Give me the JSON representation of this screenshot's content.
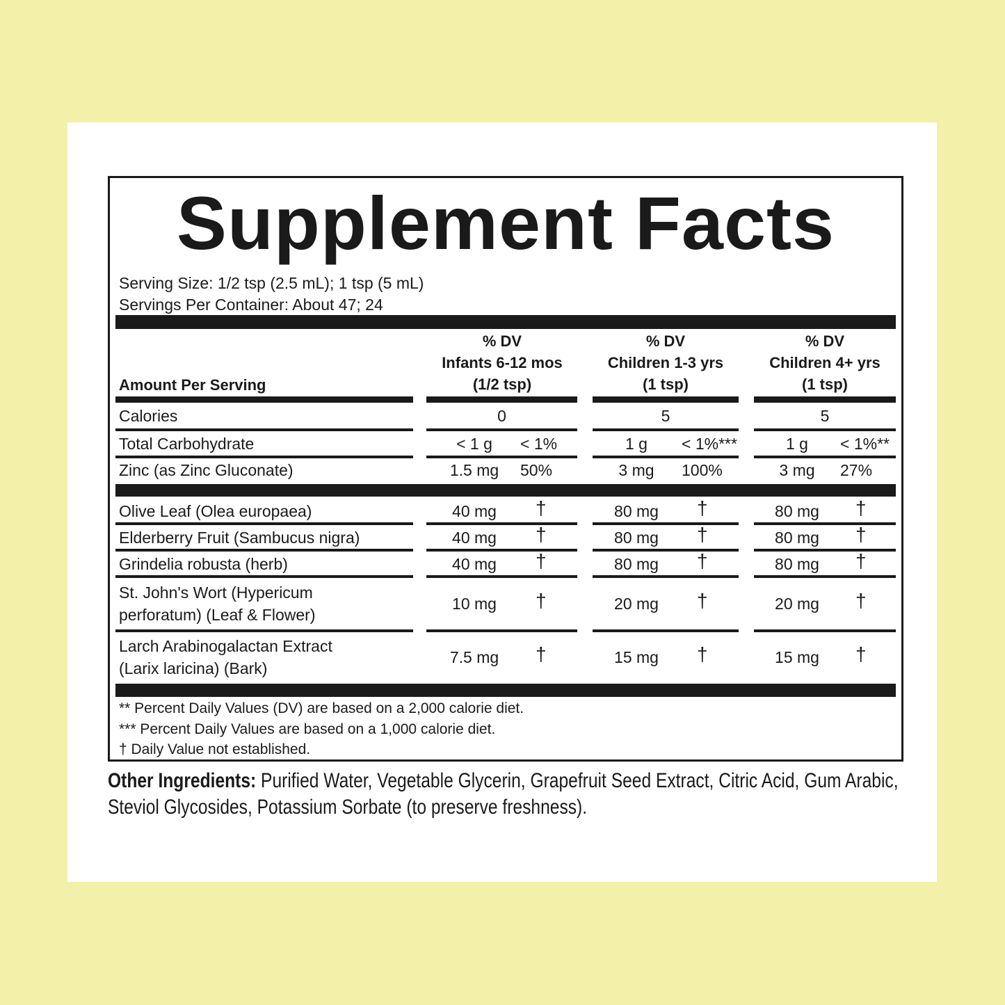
{
  "title": "Supplement Facts",
  "serving_size": "Serving Size: 1/2 tsp (2.5 mL); 1 tsp (5 mL)",
  "servings_per_container": "Servings Per Container: About 47; 24",
  "header": {
    "amount_per_serving": "Amount Per Serving",
    "columns": [
      {
        "dv": "% DV",
        "group": "Infants 6-12 mos",
        "serving": "(1/2 tsp)"
      },
      {
        "dv": "% DV",
        "group": "Children 1-3 yrs",
        "serving": "(1 tsp)"
      },
      {
        "dv": "% DV",
        "group": "Children 4+ yrs",
        "serving": "(1 tsp)"
      }
    ]
  },
  "rows": [
    {
      "name": "Calories",
      "cols": [
        {
          "amount": "0",
          "dv": ""
        },
        {
          "amount": "5",
          "dv": ""
        },
        {
          "amount": "5",
          "dv": ""
        }
      ],
      "single": true
    },
    {
      "name": "Total Carbohydrate",
      "cols": [
        {
          "amount": "< 1 g",
          "dv": "< 1%"
        },
        {
          "amount": "1 g",
          "dv": "< 1%***"
        },
        {
          "amount": "1 g",
          "dv": "< 1%**"
        }
      ]
    },
    {
      "name": "Zinc (as Zinc Gluconate)",
      "cols": [
        {
          "amount": "1.5 mg",
          "dv": "50%"
        },
        {
          "amount": "3 mg",
          "dv": "100%"
        },
        {
          "amount": "3 mg",
          "dv": "27%"
        }
      ]
    },
    {
      "name": "Olive Leaf (Olea europaea)",
      "cols": [
        {
          "amount": "40 mg",
          "dv": "†"
        },
        {
          "amount": "80 mg",
          "dv": "†"
        },
        {
          "amount": "80 mg",
          "dv": "†"
        }
      ]
    },
    {
      "name": "Elderberry Fruit (Sambucus nigra)",
      "cols": [
        {
          "amount": "40 mg",
          "dv": "†"
        },
        {
          "amount": "80 mg",
          "dv": "†"
        },
        {
          "amount": "80 mg",
          "dv": "†"
        }
      ]
    },
    {
      "name": "Grindelia robusta (herb)",
      "cols": [
        {
          "amount": "40 mg",
          "dv": "†"
        },
        {
          "amount": "80 mg",
          "dv": "†"
        },
        {
          "amount": "80 mg",
          "dv": "†"
        }
      ]
    },
    {
      "name": "St. John's Wort (Hypericum",
      "name2": "perforatum) (Leaf & Flower)",
      "cols": [
        {
          "amount": "10 mg",
          "dv": "†"
        },
        {
          "amount": "20 mg",
          "dv": "†"
        },
        {
          "amount": "20 mg",
          "dv": "†"
        }
      ]
    },
    {
      "name": "Larch Arabinogalactan Extract",
      "name2": "(Larix laricina) (Bark)",
      "cols": [
        {
          "amount": "7.5 mg",
          "dv": "†"
        },
        {
          "amount": "15 mg",
          "dv": "†"
        },
        {
          "amount": "15 mg",
          "dv": "†"
        }
      ]
    }
  ],
  "footnotes": [
    "** Percent Daily Values (DV) are based on a 2,000 calorie diet.",
    "*** Percent Daily Values are based on a 1,000 calorie diet.",
    "† Daily Value not established."
  ],
  "other_ingredients": {
    "label": "Other Ingredients:",
    "text": " Purified Water, Vegetable Glycerin, Grapefruit Seed Extract, Citric Acid, Gum Arabic, Steviol Glycosides, Potassium Sorbate (to preserve freshness)."
  }
}
